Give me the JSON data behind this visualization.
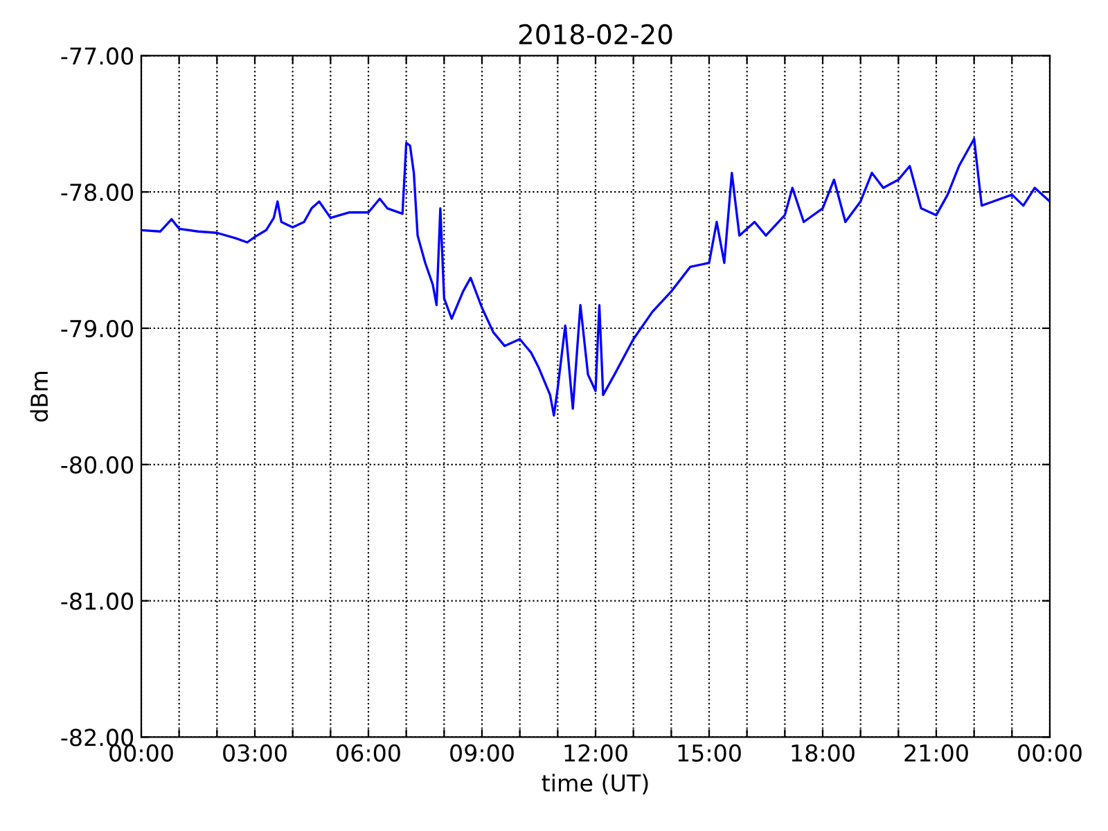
{
  "chart_data": {
    "type": "line",
    "title": "2018-02-20",
    "xlabel": "time (UT)",
    "ylabel": "dBm",
    "x": [
      0,
      0.5,
      0.8,
      1,
      1.5,
      2,
      2.5,
      2.8,
      3,
      3.3,
      3.5,
      3.6,
      3.7,
      4,
      4.3,
      4.5,
      4.7,
      5,
      5.5,
      6,
      6.3,
      6.5,
      6.9,
      7,
      7.1,
      7.2,
      7.3,
      7.5,
      7.7,
      7.8,
      7.9,
      8,
      8.2,
      8.5,
      8.7,
      9,
      9.3,
      9.6,
      10,
      10.3,
      10.5,
      10.8,
      10.9,
      11,
      11.2,
      11.4,
      11.6,
      11.8,
      12,
      12.1,
      12.2,
      12.5,
      13,
      13.5,
      14,
      14.5,
      15,
      15.2,
      15.4,
      15.6,
      15.8,
      16.2,
      16.5,
      17,
      17.2,
      17.5,
      18,
      18.3,
      18.6,
      19,
      19.3,
      19.6,
      20,
      20.3,
      20.6,
      21,
      21.3,
      21.6,
      22,
      22.2,
      22.5,
      23,
      23.3,
      23.6,
      24
    ],
    "series": [
      {
        "color": "#0000ff",
        "values": [
          -78.28,
          -78.29,
          -78.2,
          -78.27,
          -78.29,
          -78.3,
          -78.34,
          -78.37,
          -78.33,
          -78.28,
          -78.19,
          -78.07,
          -78.22,
          -78.26,
          -78.22,
          -78.12,
          -78.07,
          -78.19,
          -78.15,
          -78.15,
          -78.05,
          -78.12,
          -78.16,
          -77.64,
          -77.66,
          -77.86,
          -78.32,
          -78.52,
          -78.68,
          -78.83,
          -78.12,
          -78.78,
          -78.93,
          -78.73,
          -78.63,
          -78.85,
          -79.03,
          -79.13,
          -79.08,
          -79.18,
          -79.29,
          -79.49,
          -79.64,
          -79.44,
          -78.98,
          -79.59,
          -78.83,
          -79.34,
          -79.46,
          -78.83,
          -79.49,
          -79.34,
          -79.08,
          -78.88,
          -78.73,
          -78.55,
          -78.52,
          -78.22,
          -78.52,
          -77.86,
          -78.32,
          -78.22,
          -78.32,
          -78.17,
          -77.97,
          -78.22,
          -78.12,
          -77.91,
          -78.22,
          -78.07,
          -77.86,
          -77.97,
          -77.91,
          -77.81,
          -78.12,
          -78.17,
          -78.02,
          -77.81,
          -77.61,
          -78.1,
          -78.07,
          -78.02,
          -78.1,
          -77.97,
          -78.07
        ]
      }
    ],
    "xlim": [
      0,
      24
    ],
    "xticks": [
      {
        "value": 0,
        "label": "00:00"
      },
      {
        "value": 1,
        "label": null
      },
      {
        "value": 2,
        "label": null
      },
      {
        "value": 3,
        "label": "03:00"
      },
      {
        "value": 4,
        "label": null
      },
      {
        "value": 5,
        "label": null
      },
      {
        "value": 6,
        "label": "06:00"
      },
      {
        "value": 7,
        "label": null
      },
      {
        "value": 8,
        "label": null
      },
      {
        "value": 9,
        "label": "09:00"
      },
      {
        "value": 10,
        "label": null
      },
      {
        "value": 11,
        "label": null
      },
      {
        "value": 12,
        "label": "12:00"
      },
      {
        "value": 13,
        "label": null
      },
      {
        "value": 14,
        "label": null
      },
      {
        "value": 15,
        "label": "15:00"
      },
      {
        "value": 16,
        "label": null
      },
      {
        "value": 17,
        "label": null
      },
      {
        "value": 18,
        "label": "18:00"
      },
      {
        "value": 19,
        "label": null
      },
      {
        "value": 20,
        "label": null
      },
      {
        "value": 21,
        "label": "21:00"
      },
      {
        "value": 22,
        "label": null
      },
      {
        "value": 23,
        "label": null
      },
      {
        "value": 24,
        "label": "00:00"
      }
    ],
    "ylim": [
      -82,
      -77
    ],
    "yticks": [
      {
        "value": -82,
        "label": "-82.00"
      },
      {
        "value": -81,
        "label": "-81.00"
      },
      {
        "value": -80,
        "label": "-80.00"
      },
      {
        "value": -79,
        "label": "-79.00"
      },
      {
        "value": -78,
        "label": "-78.00"
      },
      {
        "value": -77,
        "label": "-77.00"
      }
    ],
    "grid": true,
    "marker": "none",
    "line_style": "solid"
  }
}
